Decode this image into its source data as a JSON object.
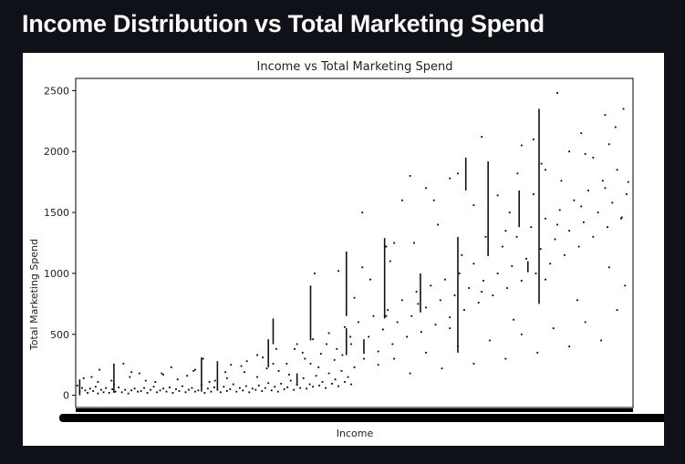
{
  "page": {
    "title": "Income Distribution vs Total Marketing Spend"
  },
  "chart_data": {
    "type": "scatter",
    "title": "Income vs Total Marketing Spend",
    "xlabel": "Income",
    "ylabel": "Total Marketing Spend",
    "ylim": [
      -100,
      2600
    ],
    "yticks": [
      0,
      500,
      1000,
      1500,
      2000,
      2500
    ],
    "x_tick_labels_illegible": true,
    "grid": false,
    "legend": "none",
    "marker_color": "#000000",
    "series": [
      {
        "values": [
          [
            2,
            80
          ],
          [
            5,
            30
          ],
          [
            8,
            60
          ],
          [
            12,
            40
          ],
          [
            15,
            20
          ],
          [
            18,
            55
          ],
          [
            22,
            35
          ],
          [
            25,
            70
          ],
          [
            28,
            15
          ],
          [
            32,
            45
          ],
          [
            35,
            25
          ],
          [
            38,
            60
          ],
          [
            42,
            20
          ],
          [
            46,
            50
          ],
          [
            50,
            30
          ],
          [
            54,
            65
          ],
          [
            58,
            25
          ],
          [
            62,
            45
          ],
          [
            66,
            15
          ],
          [
            70,
            40
          ],
          [
            74,
            55
          ],
          [
            78,
            30
          ],
          [
            82,
            35
          ],
          [
            86,
            60
          ],
          [
            90,
            20
          ],
          [
            94,
            45
          ],
          [
            98,
            70
          ],
          [
            102,
            25
          ],
          [
            106,
            40
          ],
          [
            110,
            55
          ],
          [
            114,
            30
          ],
          [
            118,
            65
          ],
          [
            122,
            20
          ],
          [
            126,
            50
          ],
          [
            130,
            35
          ],
          [
            134,
            75
          ],
          [
            138,
            25
          ],
          [
            142,
            45
          ],
          [
            146,
            60
          ],
          [
            150,
            30
          ],
          [
            154,
            40
          ],
          [
            158,
            85
          ],
          [
            162,
            20
          ],
          [
            166,
            55
          ],
          [
            170,
            30
          ],
          [
            174,
            65
          ],
          [
            178,
            45
          ],
          [
            182,
            25
          ],
          [
            186,
            70
          ],
          [
            190,
            35
          ],
          [
            194,
            50
          ],
          [
            198,
            90
          ],
          [
            202,
            30
          ],
          [
            206,
            60
          ],
          [
            210,
            40
          ],
          [
            214,
            75
          ],
          [
            218,
            25
          ],
          [
            222,
            55
          ],
          [
            226,
            45
          ],
          [
            230,
            80
          ],
          [
            234,
            35
          ],
          [
            238,
            60
          ],
          [
            242,
            100
          ],
          [
            246,
            40
          ],
          [
            250,
            70
          ],
          [
            254,
            30
          ],
          [
            258,
            95
          ],
          [
            262,
            50
          ],
          [
            266,
            65
          ],
          [
            270,
            120
          ],
          [
            274,
            45
          ],
          [
            278,
            85
          ],
          [
            282,
            60
          ],
          [
            286,
            140
          ],
          [
            290,
            55
          ],
          [
            294,
            90
          ],
          [
            298,
            70
          ],
          [
            302,
            160
          ],
          [
            306,
            80
          ],
          [
            310,
            110
          ],
          [
            314,
            60
          ],
          [
            318,
            180
          ],
          [
            322,
            95
          ],
          [
            326,
            130
          ],
          [
            330,
            75
          ],
          [
            334,
            200
          ],
          [
            338,
            110
          ],
          [
            342,
            150
          ],
          [
            346,
            90
          ],
          [
            350,
            230
          ],
          [
            20,
            150
          ],
          [
            45,
            120
          ],
          [
            60,
            260
          ],
          [
            80,
            180
          ],
          [
            100,
            110
          ],
          [
            120,
            230
          ],
          [
            140,
            160
          ],
          [
            160,
            300
          ],
          [
            175,
            120
          ],
          [
            195,
            250
          ],
          [
            212,
            190
          ],
          [
            228,
            330
          ],
          [
            240,
            220
          ],
          [
            252,
            380
          ],
          [
            265,
            260
          ],
          [
            278,
            420
          ],
          [
            288,
            300
          ],
          [
            298,
            460
          ],
          [
            308,
            340
          ],
          [
            318,
            510
          ],
          [
            328,
            380
          ],
          [
            338,
            560
          ],
          [
            346,
            420
          ],
          [
            355,
            600
          ],
          [
            362,
            300
          ],
          [
            368,
            480
          ],
          [
            374,
            650
          ],
          [
            380,
            360
          ],
          [
            386,
            540
          ],
          [
            392,
            700
          ],
          [
            398,
            420
          ],
          [
            404,
            600
          ],
          [
            410,
            780
          ],
          [
            416,
            480
          ],
          [
            422,
            650
          ],
          [
            428,
            850
          ],
          [
            434,
            520
          ],
          [
            440,
            720
          ],
          [
            446,
            900
          ],
          [
            452,
            580
          ],
          [
            458,
            780
          ],
          [
            464,
            950
          ],
          [
            470,
            640
          ],
          [
            476,
            820
          ],
          [
            482,
            1000
          ],
          [
            488,
            700
          ],
          [
            494,
            880
          ],
          [
            500,
            1080
          ],
          [
            506,
            760
          ],
          [
            512,
            940
          ],
          [
            518,
            1150
          ],
          [
            524,
            820
          ],
          [
            530,
            1000
          ],
          [
            536,
            1220
          ],
          [
            542,
            880
          ],
          [
            548,
            1060
          ],
          [
            554,
            1300
          ],
          [
            560,
            940
          ],
          [
            566,
            1120
          ],
          [
            572,
            1380
          ],
          [
            578,
            1000
          ],
          [
            584,
            1200
          ],
          [
            590,
            1450
          ],
          [
            596,
            1080
          ],
          [
            602,
            1280
          ],
          [
            608,
            1520
          ],
          [
            614,
            1150
          ],
          [
            620,
            1350
          ],
          [
            626,
            1600
          ],
          [
            632,
            1220
          ],
          [
            638,
            1420
          ],
          [
            644,
            1680
          ],
          [
            650,
            1300
          ],
          [
            656,
            1500
          ],
          [
            662,
            1760
          ],
          [
            668,
            1380
          ],
          [
            674,
            1580
          ],
          [
            680,
            1850
          ],
          [
            686,
            1460
          ],
          [
            692,
            1650
          ],
          [
            300,
            1000
          ],
          [
            330,
            1020
          ],
          [
            360,
            1500
          ],
          [
            390,
            1220
          ],
          [
            420,
            1800
          ],
          [
            450,
            1600
          ],
          [
            480,
            1820
          ],
          [
            510,
            2120
          ],
          [
            540,
            1350
          ],
          [
            560,
            2050
          ],
          [
            575,
            2100
          ],
          [
            590,
            1850
          ],
          [
            605,
            2480
          ],
          [
            620,
            2000
          ],
          [
            635,
            2150
          ],
          [
            650,
            1950
          ],
          [
            665,
            2300
          ],
          [
            678,
            2200
          ],
          [
            688,
            2350
          ],
          [
            694,
            1750
          ],
          [
            410,
            1600
          ],
          [
            440,
            1700
          ],
          [
            470,
            1780
          ],
          [
            500,
            1560
          ],
          [
            530,
            1640
          ],
          [
            555,
            1820
          ],
          [
            585,
            1900
          ],
          [
            610,
            1760
          ],
          [
            640,
            1980
          ],
          [
            670,
            2060
          ],
          [
            380,
            250
          ],
          [
            400,
            300
          ],
          [
            420,
            180
          ],
          [
            440,
            350
          ],
          [
            460,
            220
          ],
          [
            480,
            400
          ],
          [
            500,
            260
          ],
          [
            520,
            450
          ],
          [
            540,
            300
          ],
          [
            560,
            500
          ],
          [
            580,
            350
          ],
          [
            600,
            550
          ],
          [
            620,
            400
          ],
          [
            640,
            600
          ],
          [
            660,
            450
          ],
          [
            680,
            700
          ],
          [
            390,
            650
          ],
          [
            430,
            750
          ],
          [
            470,
            550
          ],
          [
            510,
            850
          ],
          [
            550,
            620
          ],
          [
            590,
            950
          ],
          [
            630,
            780
          ],
          [
            670,
            1050
          ],
          [
            690,
            900
          ],
          [
            350,
            800
          ],
          [
            370,
            950
          ],
          [
            395,
            1100
          ],
          [
            425,
            1250
          ],
          [
            455,
            1400
          ],
          [
            485,
            1150
          ],
          [
            515,
            1300
          ],
          [
            545,
            1500
          ],
          [
            575,
            1650
          ],
          [
            605,
            1400
          ],
          [
            635,
            1550
          ],
          [
            665,
            1700
          ],
          [
            685,
            1450
          ],
          [
            360,
            1050
          ],
          [
            400,
            1250
          ],
          [
            30,
            210
          ],
          [
            70,
            190
          ],
          [
            110,
            170
          ],
          [
            150,
            210
          ],
          [
            190,
            140
          ],
          [
            215,
            280
          ],
          [
            235,
            310
          ],
          [
            255,
            200
          ],
          [
            275,
            380
          ],
          [
            295,
            260
          ],
          [
            315,
            420
          ],
          [
            335,
            330
          ],
          [
            345,
            480
          ],
          [
            325,
            290
          ],
          [
            305,
            230
          ],
          [
            285,
            350
          ],
          [
            268,
            170
          ],
          [
            248,
            260
          ],
          [
            228,
            150
          ],
          [
            208,
            240
          ],
          [
            188,
            190
          ],
          [
            168,
            110
          ],
          [
            148,
            200
          ],
          [
            128,
            130
          ],
          [
            108,
            180
          ],
          [
            88,
            120
          ],
          [
            68,
            150
          ],
          [
            48,
            90
          ],
          [
            28,
            110
          ],
          [
            10,
            140
          ]
        ]
      }
    ],
    "vertical_segments": [
      [
        5,
        0,
        130
      ],
      [
        48,
        20,
        260
      ],
      [
        158,
        30,
        310
      ],
      [
        178,
        40,
        280
      ],
      [
        242,
        230,
        460
      ],
      [
        248,
        420,
        630
      ],
      [
        278,
        80,
        180
      ],
      [
        295,
        450,
        900
      ],
      [
        340,
        650,
        1180
      ],
      [
        340,
        330,
        550
      ],
      [
        362,
        340,
        460
      ],
      [
        388,
        630,
        1290
      ],
      [
        433,
        680,
        1000
      ],
      [
        480,
        350,
        1300
      ],
      [
        490,
        1680,
        1950
      ],
      [
        518,
        1150,
        1920
      ],
      [
        557,
        1380,
        1680
      ],
      [
        568,
        1010,
        1100
      ],
      [
        582,
        750,
        2350
      ]
    ]
  }
}
